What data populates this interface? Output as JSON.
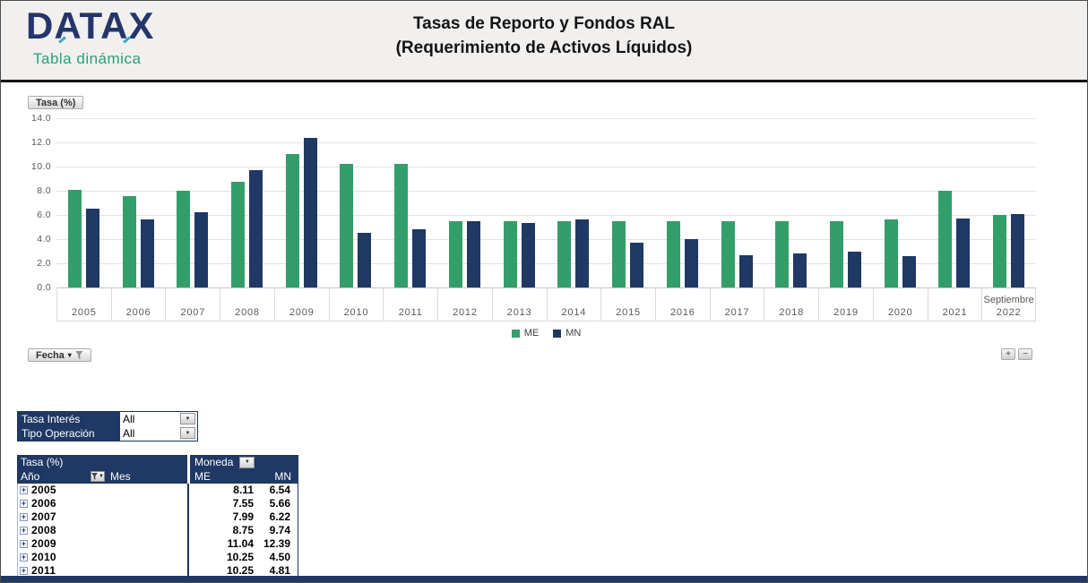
{
  "header": {
    "logo": "DATAX",
    "logo_subtitle": "Tabla dinámica",
    "title_line1": "Tasas de Reporto y Fondos RAL",
    "title_line2": "(Requerimiento de Activos Líquidos)"
  },
  "icons": {
    "plus": "+",
    "minus": "−",
    "dropdown_arrow": "▼",
    "chevron_down": "▾",
    "expand_box": "+"
  },
  "chart": {
    "value_field_button": "Tasa (%)",
    "axis_field_button": "Fecha"
  },
  "chart_data": {
    "type": "bar",
    "title": "Tasas de Reporto y Fondos RAL (Requerimiento de Activos Líquidos)",
    "ylabel": "Tasa (%)",
    "xlabel": "Fecha",
    "ylim": [
      0,
      14
    ],
    "ytick_step": 2,
    "yticks": [
      "0.0",
      "2.0",
      "4.0",
      "6.0",
      "8.0",
      "10.0",
      "12.0",
      "14.0"
    ],
    "grid": true,
    "legend_position": "bottom",
    "categories": [
      "2005",
      "2006",
      "2007",
      "2008",
      "2009",
      "2010",
      "2011",
      "2012",
      "2013",
      "2014",
      "2015",
      "2016",
      "2017",
      "2018",
      "2019",
      "2020",
      "2021",
      "2022"
    ],
    "last_category_sublabel": "Septiembre",
    "series": [
      {
        "name": "ME",
        "color": "#349e6a",
        "values": [
          8.11,
          7.55,
          7.99,
          8.75,
          11.04,
          10.25,
          10.25,
          5.5,
          5.5,
          5.5,
          5.5,
          5.5,
          5.5,
          5.5,
          5.5,
          5.6,
          8.0,
          6.0
        ]
      },
      {
        "name": "MN",
        "color": "#1f3864",
        "values": [
          6.54,
          5.66,
          6.22,
          9.74,
          12.39,
          4.5,
          4.81,
          5.5,
          5.3,
          5.6,
          3.7,
          4.0,
          2.7,
          2.8,
          3.0,
          2.6,
          5.7,
          6.1
        ]
      }
    ]
  },
  "filters": {
    "rows": [
      {
        "label": "Tasa Interés",
        "value": "All"
      },
      {
        "label": "Tipo Operación",
        "value": "All"
      }
    ]
  },
  "pivot": {
    "corner_label": "Tasa (%)",
    "row_field": "Año",
    "row_field2": "Mes",
    "col_field": "Moneda",
    "col_headers": [
      "ME",
      "MN"
    ],
    "rows": [
      {
        "year": "2005",
        "me": "8.11",
        "mn": "6.54"
      },
      {
        "year": "2006",
        "me": "7.55",
        "mn": "5.66"
      },
      {
        "year": "2007",
        "me": "7.99",
        "mn": "6.22"
      },
      {
        "year": "2008",
        "me": "8.75",
        "mn": "9.74"
      },
      {
        "year": "2009",
        "me": "11.04",
        "mn": "12.39"
      },
      {
        "year": "2010",
        "me": "10.25",
        "mn": "4.50"
      },
      {
        "year": "2011",
        "me": "10.25",
        "mn": "4.81"
      }
    ]
  }
}
